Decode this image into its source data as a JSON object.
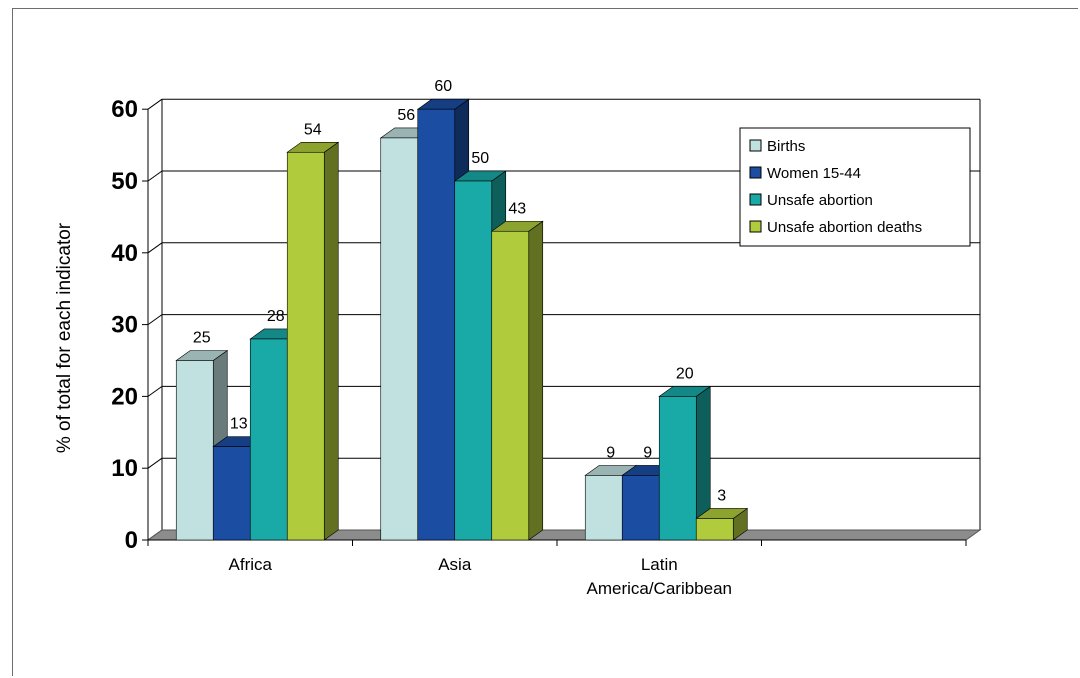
{
  "chart_data": {
    "type": "bar",
    "title": "",
    "xlabel": "",
    "ylabel": "% of total for each indicator",
    "categories": [
      "Africa",
      "Asia",
      "Latin America/Caribbean",
      ""
    ],
    "category_label_lines": [
      [
        "Africa"
      ],
      [
        "Asia"
      ],
      [
        "Latin",
        "America/Caribbean"
      ],
      []
    ],
    "series": [
      {
        "name": "Births",
        "values": [
          25,
          56,
          9,
          null
        ],
        "color": "#c1e0e0"
      },
      {
        "name": "Women 15-44",
        "values": [
          13,
          60,
          9,
          null
        ],
        "color": "#1b4ea3"
      },
      {
        "name": "Unsafe abortion",
        "values": [
          28,
          50,
          20,
          null
        ],
        "color": "#19aaa8"
      },
      {
        "name": "Unsafe abortion deaths",
        "values": [
          54,
          43,
          3,
          null
        ],
        "color": "#b0cc3c"
      }
    ],
    "ylim": [
      0,
      60
    ],
    "yticks": [
      0,
      10,
      20,
      30,
      40,
      50,
      60
    ],
    "grid": true,
    "legend_position": "top-right",
    "three_d": true
  }
}
